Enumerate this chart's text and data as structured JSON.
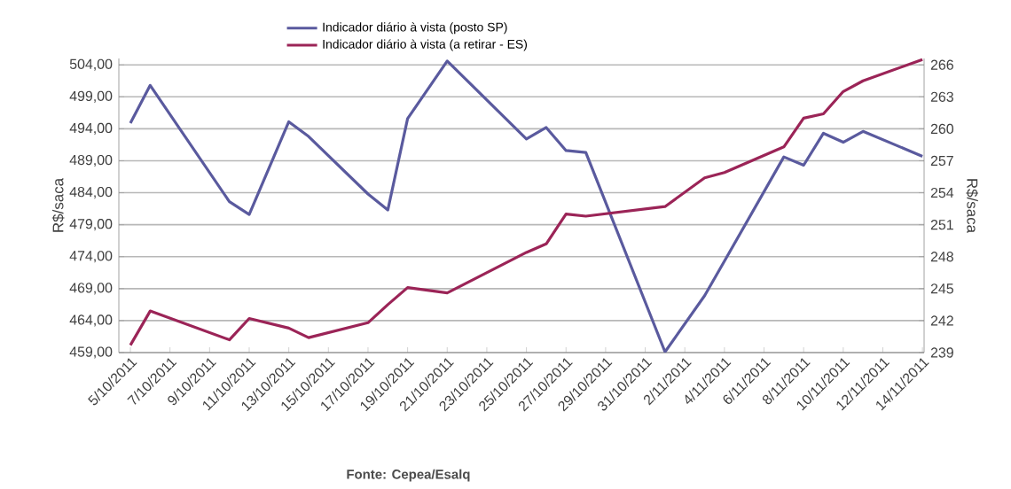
{
  "chart_data": {
    "type": "line",
    "ylabel": "R$/saca",
    "y2label": "R$/saca",
    "annotations": [
      "Fonte: Cepea/Esalq"
    ],
    "xlim": [
      "2011-10-04T10:00",
      "2011-11-14T02:00"
    ],
    "xticks": [
      {
        "value": "2011-10-05",
        "label": "5/10/2011"
      },
      {
        "value": "2011-10-07",
        "label": "7/10/2011"
      },
      {
        "value": "2011-10-09",
        "label": "9/10/2011"
      },
      {
        "value": "2011-10-11",
        "label": "11/10/2011"
      },
      {
        "value": "2011-10-13",
        "label": "13/10/2011"
      },
      {
        "value": "2011-10-15",
        "label": "15/10/2011"
      },
      {
        "value": "2011-10-17",
        "label": "17/10/2011"
      },
      {
        "value": "2011-10-19",
        "label": "19/10/2011"
      },
      {
        "value": "2011-10-21",
        "label": "21/10/2011"
      },
      {
        "value": "2011-10-23",
        "label": "23/10/2011"
      },
      {
        "value": "2011-10-25",
        "label": "25/10/2011"
      },
      {
        "value": "2011-10-27",
        "label": "27/10/2011"
      },
      {
        "value": "2011-10-29",
        "label": "29/10/2011"
      },
      {
        "value": "2011-10-31",
        "label": "31/10/2011"
      },
      {
        "value": "2011-11-02",
        "label": "2/11/2011"
      },
      {
        "value": "2011-11-04",
        "label": "4/11/2011"
      },
      {
        "value": "2011-11-06",
        "label": "6/11/2011"
      },
      {
        "value": "2011-11-08",
        "label": "8/11/2011"
      },
      {
        "value": "2011-11-10",
        "label": "10/11/2011"
      },
      {
        "value": "2011-11-12",
        "label": "12/11/2011"
      },
      {
        "value": "2011-11-14",
        "label": "14/11/2011"
      }
    ],
    "ylim": [
      459,
      505
    ],
    "yticks": [
      {
        "value": 459,
        "label": "459,00"
      },
      {
        "value": 464,
        "label": "464,00"
      },
      {
        "value": 469,
        "label": "469,00"
      },
      {
        "value": 474,
        "label": "474,00"
      },
      {
        "value": 479,
        "label": "479,00"
      },
      {
        "value": 484,
        "label": "484,00"
      },
      {
        "value": 489,
        "label": "489,00"
      },
      {
        "value": 494,
        "label": "494,00"
      },
      {
        "value": 499,
        "label": "499,00"
      },
      {
        "value": 504,
        "label": "504,00"
      }
    ],
    "y2lim": [
      239,
      266.6
    ],
    "y2ticks": [
      239,
      242,
      245,
      248,
      251,
      254,
      257,
      260,
      263,
      266
    ],
    "grid": "y",
    "legend": "top",
    "marker": "none",
    "line_style": "solid",
    "x": [
      "2011-10-05",
      "2011-10-06",
      "2011-10-10",
      "2011-10-11",
      "2011-10-13",
      "2011-10-14",
      "2011-10-17",
      "2011-10-18",
      "2011-10-19",
      "2011-10-21",
      "2011-10-25",
      "2011-10-26",
      "2011-10-27",
      "2011-10-28",
      "2011-11-01",
      "2011-11-03",
      "2011-11-04",
      "2011-11-07",
      "2011-11-08",
      "2011-11-09",
      "2011-11-10",
      "2011-11-11",
      "2011-11-14"
    ],
    "series": [
      {
        "name": "Indicador diário à vista (posto SP)",
        "color": "#5a5a9e",
        "values": [
          494.9,
          500.8,
          482.6,
          480.6,
          495.1,
          492.8,
          483.8,
          481.3,
          495.6,
          504.6,
          492.4,
          494.2,
          490.6,
          490.3,
          459.1,
          467.9,
          473.3,
          489.6,
          488.3,
          493.3,
          491.9,
          493.6,
          489.7
        ]
      },
      {
        "name": "Indicador diário à vista (a retirar - ES)",
        "color": "#9b2457",
        "axis": "y2",
        "values": [
          239.7,
          242.9,
          240.2,
          242.2,
          241.3,
          240.4,
          241.8,
          243.5,
          245.1,
          244.6,
          248.4,
          249.2,
          252.0,
          251.8,
          252.7,
          255.4,
          255.9,
          258.3,
          261.0,
          261.4,
          263.5,
          264.5,
          266.5
        ]
      }
    ]
  }
}
